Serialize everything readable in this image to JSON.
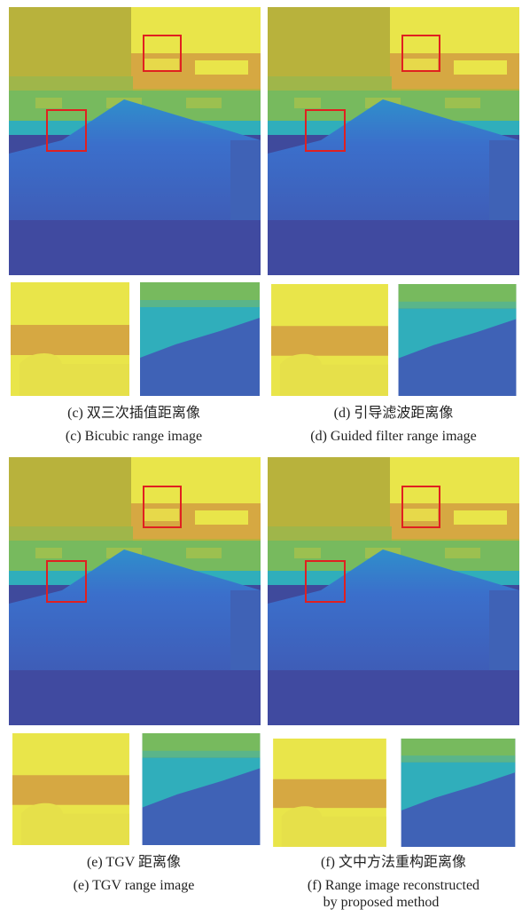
{
  "panels": [
    {
      "caption_zh": "(c) 双三次插值距离像",
      "caption_en": [
        "(c) Bicubic range image"
      ]
    },
    {
      "caption_zh": "(d) 引导滤波距离像",
      "caption_en": [
        "(d) Guided filter range image"
      ]
    },
    {
      "caption_zh": "(e) TGV 距离像",
      "caption_en": [
        "(e) TGV range image"
      ]
    },
    {
      "caption_zh": "(f) 文中方法重构距离像",
      "caption_en": [
        "(f) Range image reconstructed",
        "by proposed method"
      ]
    }
  ]
}
